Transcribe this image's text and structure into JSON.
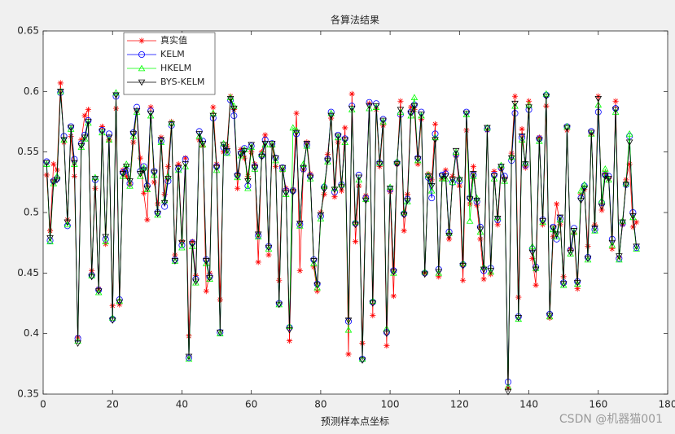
{
  "chart_data": {
    "type": "line",
    "title": "各算法结果",
    "x_label": "预测样本点坐标",
    "watermark": "CSDN @机器猫001",
    "x": [
      1,
      2,
      3,
      4,
      5,
      6,
      7,
      8,
      9,
      10,
      11,
      12,
      13,
      14,
      15,
      16,
      17,
      18,
      19,
      20,
      21,
      22,
      23,
      24,
      25,
      26,
      27,
      28,
      29,
      30,
      31,
      32,
      33,
      34,
      35,
      36,
      37,
      38,
      39,
      40,
      41,
      42,
      43,
      44,
      45,
      46,
      47,
      48,
      49,
      50,
      51,
      52,
      53,
      54,
      55,
      56,
      57,
      58,
      59,
      60,
      61,
      62,
      63,
      64,
      65,
      66,
      67,
      68,
      69,
      70,
      71,
      72,
      73,
      74,
      75,
      76,
      77,
      78,
      79,
      80,
      81,
      82,
      83,
      84,
      85,
      86,
      87,
      88,
      89,
      90,
      91,
      92,
      93,
      94,
      95,
      96,
      97,
      98,
      99,
      100,
      101,
      102,
      103,
      104,
      105,
      106,
      107,
      108,
      109,
      110,
      111,
      112,
      113,
      114,
      115,
      116,
      117,
      118,
      119,
      120,
      121,
      122,
      123,
      124,
      125,
      126,
      127,
      128,
      129,
      130,
      131,
      132,
      133,
      134,
      135,
      136,
      137,
      138,
      139,
      140,
      141,
      142,
      143,
      144,
      145,
      146,
      147,
      148,
      149,
      150,
      151,
      152,
      153,
      154,
      155,
      156,
      157,
      158,
      159,
      160,
      161,
      162,
      163,
      164,
      165,
      166,
      167,
      168,
      169,
      170,
      171
    ],
    "series": [
      {
        "name": "真实值",
        "color": "#ff0000",
        "marker": "*",
        "values": [
          0.531,
          0.485,
          0.54,
          0.535,
          0.607,
          0.558,
          0.494,
          0.563,
          0.53,
          0.397,
          0.56,
          0.58,
          0.585,
          0.452,
          0.52,
          0.437,
          0.571,
          0.474,
          0.56,
          0.423,
          0.586,
          0.424,
          0.535,
          0.53,
          0.523,
          0.558,
          0.584,
          0.545,
          0.516,
          0.494,
          0.587,
          0.525,
          0.507,
          0.562,
          0.515,
          0.538,
          0.575,
          0.465,
          0.54,
          0.476,
          0.545,
          0.398,
          0.476,
          0.448,
          0.56,
          0.555,
          0.435,
          0.45,
          0.587,
          0.54,
          0.428,
          0.55,
          0.555,
          0.596,
          0.585,
          0.52,
          0.552,
          0.545,
          0.53,
          0.55,
          0.54,
          0.459,
          0.55,
          0.564,
          0.465,
          0.555,
          0.538,
          0.444,
          0.535,
          0.52,
          0.394,
          0.519,
          0.582,
          0.452,
          0.535,
          0.558,
          0.532,
          0.455,
          0.435,
          0.5,
          0.515,
          0.548,
          0.578,
          0.513,
          0.558,
          0.518,
          0.57,
          0.383,
          0.598,
          0.476,
          0.522,
          0.392,
          0.514,
          0.59,
          0.415,
          0.585,
          0.538,
          0.572,
          0.39,
          0.517,
          0.431,
          0.54,
          0.592,
          0.485,
          0.515,
          0.587,
          0.585,
          0.54,
          0.577,
          0.45,
          0.532,
          0.527,
          0.573,
          0.447,
          0.528,
          0.535,
          0.478,
          0.53,
          0.547,
          0.522,
          0.444,
          0.568,
          0.507,
          0.538,
          0.506,
          0.478,
          0.445,
          0.568,
          0.449,
          0.534,
          0.49,
          0.536,
          0.528,
          0.355,
          0.549,
          0.596,
          0.43,
          0.569,
          0.537,
          0.592,
          0.462,
          0.44,
          0.562,
          0.49,
          0.588,
          0.413,
          0.48,
          0.507,
          0.49,
          0.447,
          0.568,
          0.47,
          0.483,
          0.437,
          0.515,
          0.519,
          0.472,
          0.565,
          0.49,
          0.596,
          0.502,
          0.533,
          0.528,
          0.47,
          0.592,
          0.463,
          0.49,
          0.527,
          0.54,
          0.488,
          0.492
        ]
      },
      {
        "name": "KELM",
        "color": "#0000ff",
        "marker": "o",
        "values": [
          0.542,
          0.477,
          0.526,
          0.528,
          0.599,
          0.563,
          0.489,
          0.571,
          0.544,
          0.396,
          0.557,
          0.564,
          0.576,
          0.448,
          0.527,
          0.436,
          0.568,
          0.478,
          0.565,
          0.412,
          0.596,
          0.428,
          0.533,
          0.535,
          0.524,
          0.566,
          0.587,
          0.534,
          0.538,
          0.522,
          0.584,
          0.534,
          0.5,
          0.559,
          0.505,
          0.526,
          0.572,
          0.461,
          0.536,
          0.473,
          0.544,
          0.38,
          0.475,
          0.445,
          0.567,
          0.559,
          0.461,
          0.447,
          0.578,
          0.538,
          0.401,
          0.554,
          0.55,
          0.593,
          0.58,
          0.531,
          0.549,
          0.553,
          0.522,
          0.555,
          0.538,
          0.481,
          0.547,
          0.56,
          0.472,
          0.557,
          0.545,
          0.425,
          0.537,
          0.518,
          0.405,
          0.518,
          0.565,
          0.49,
          0.536,
          0.556,
          0.53,
          0.461,
          0.441,
          0.497,
          0.521,
          0.544,
          0.583,
          0.517,
          0.564,
          0.523,
          0.561,
          0.41,
          0.588,
          0.491,
          0.531,
          0.379,
          0.512,
          0.591,
          0.426,
          0.59,
          0.541,
          0.577,
          0.401,
          0.519,
          0.452,
          0.541,
          0.581,
          0.499,
          0.511,
          0.583,
          0.589,
          0.545,
          0.583,
          0.45,
          0.529,
          0.512,
          0.565,
          0.453,
          0.531,
          0.532,
          0.484,
          0.525,
          0.548,
          0.526,
          0.457,
          0.583,
          0.512,
          0.531,
          0.509,
          0.488,
          0.452,
          0.569,
          0.454,
          0.531,
          0.494,
          0.537,
          0.53,
          0.36,
          0.543,
          0.582,
          0.414,
          0.562,
          0.539,
          0.585,
          0.47,
          0.455,
          0.561,
          0.494,
          0.597,
          0.416,
          0.488,
          0.478,
          0.495,
          0.442,
          0.571,
          0.469,
          0.487,
          0.443,
          0.512,
          0.522,
          0.463,
          0.567,
          0.486,
          0.583,
          0.508,
          0.531,
          0.53,
          0.478,
          0.586,
          0.462,
          0.491,
          0.523,
          0.563,
          0.5,
          0.471
        ]
      },
      {
        "name": "HKELM",
        "color": "#00ff00",
        "marker": "^",
        "values": [
          0.54,
          0.476,
          0.524,
          0.53,
          0.6,
          0.56,
          0.49,
          0.569,
          0.54,
          0.394,
          0.554,
          0.561,
          0.574,
          0.448,
          0.529,
          0.434,
          0.566,
          0.476,
          0.56,
          0.413,
          0.599,
          0.427,
          0.53,
          0.54,
          0.522,
          0.563,
          0.583,
          0.53,
          0.537,
          0.519,
          0.58,
          0.531,
          0.498,
          0.558,
          0.51,
          0.53,
          0.574,
          0.46,
          0.535,
          0.471,
          0.538,
          0.379,
          0.472,
          0.442,
          0.563,
          0.556,
          0.458,
          0.445,
          0.582,
          0.535,
          0.4,
          0.557,
          0.549,
          0.595,
          0.588,
          0.529,
          0.547,
          0.552,
          0.52,
          0.554,
          0.536,
          0.48,
          0.548,
          0.556,
          0.47,
          0.556,
          0.543,
          0.424,
          0.536,
          0.515,
          0.406,
          0.57,
          0.568,
          0.489,
          0.54,
          0.555,
          0.528,
          0.458,
          0.438,
          0.495,
          0.522,
          0.542,
          0.582,
          0.52,
          0.562,
          0.523,
          0.558,
          0.403,
          0.585,
          0.492,
          0.527,
          0.379,
          0.511,
          0.586,
          0.427,
          0.587,
          0.541,
          0.575,
          0.404,
          0.521,
          0.45,
          0.542,
          0.583,
          0.5,
          0.509,
          0.58,
          0.595,
          0.543,
          0.58,
          0.451,
          0.531,
          0.518,
          0.562,
          0.45,
          0.528,
          0.528,
          0.483,
          0.525,
          0.55,
          0.528,
          0.458,
          0.581,
          0.493,
          0.53,
          0.512,
          0.484,
          0.455,
          0.57,
          0.451,
          0.528,
          0.496,
          0.539,
          0.526,
          0.356,
          0.546,
          0.588,
          0.412,
          0.56,
          0.541,
          0.589,
          0.472,
          0.454,
          0.559,
          0.492,
          0.598,
          0.414,
          0.486,
          0.48,
          0.494,
          0.44,
          0.571,
          0.466,
          0.484,
          0.441,
          0.518,
          0.523,
          0.461,
          0.565,
          0.485,
          0.589,
          0.51,
          0.536,
          0.527,
          0.473,
          0.583,
          0.461,
          0.493,
          0.524,
          0.565,
          0.496,
          0.47
        ]
      },
      {
        "name": "BYS-KELM",
        "color": "#000000",
        "marker": "v",
        "values": [
          0.541,
          0.479,
          0.525,
          0.527,
          0.6,
          0.56,
          0.492,
          0.57,
          0.541,
          0.392,
          0.555,
          0.562,
          0.575,
          0.447,
          0.528,
          0.435,
          0.567,
          0.48,
          0.562,
          0.411,
          0.597,
          0.426,
          0.532,
          0.538,
          0.526,
          0.565,
          0.584,
          0.532,
          0.535,
          0.52,
          0.582,
          0.533,
          0.499,
          0.56,
          0.508,
          0.528,
          0.573,
          0.46,
          0.537,
          0.475,
          0.54,
          0.381,
          0.474,
          0.443,
          0.565,
          0.557,
          0.46,
          0.446,
          0.58,
          0.537,
          0.401,
          0.556,
          0.551,
          0.594,
          0.586,
          0.53,
          0.548,
          0.551,
          0.526,
          0.556,
          0.537,
          0.482,
          0.546,
          0.557,
          0.471,
          0.557,
          0.545,
          0.424,
          0.537,
          0.516,
          0.403,
          0.517,
          0.566,
          0.491,
          0.537,
          0.557,
          0.529,
          0.46,
          0.44,
          0.498,
          0.519,
          0.543,
          0.58,
          0.519,
          0.563,
          0.521,
          0.56,
          0.411,
          0.586,
          0.49,
          0.529,
          0.378,
          0.51,
          0.588,
          0.425,
          0.588,
          0.54,
          0.576,
          0.4,
          0.52,
          0.451,
          0.54,
          0.585,
          0.498,
          0.51,
          0.582,
          0.588,
          0.544,
          0.581,
          0.449,
          0.53,
          0.522,
          0.56,
          0.451,
          0.53,
          0.53,
          0.481,
          0.527,
          0.551,
          0.527,
          0.456,
          0.582,
          0.511,
          0.532,
          0.51,
          0.486,
          0.453,
          0.57,
          0.452,
          0.53,
          0.495,
          0.538,
          0.527,
          0.352,
          0.545,
          0.59,
          0.413,
          0.563,
          0.54,
          0.587,
          0.467,
          0.453,
          0.56,
          0.493,
          0.596,
          0.415,
          0.487,
          0.482,
          0.496,
          0.441,
          0.57,
          0.467,
          0.485,
          0.442,
          0.51,
          0.52,
          0.462,
          0.566,
          0.487,
          0.594,
          0.505,
          0.53,
          0.528,
          0.475,
          0.585,
          0.464,
          0.492,
          0.523,
          0.558,
          0.497,
          0.472
        ]
      }
    ],
    "xlim": [
      0,
      180
    ],
    "xticks": [
      0,
      20,
      40,
      60,
      80,
      100,
      120,
      140,
      160,
      180
    ],
    "ylim": [
      0.35,
      0.65
    ],
    "yticks": [
      0.35,
      0.4,
      0.45,
      0.5,
      0.55,
      0.6,
      0.65
    ],
    "grid": false,
    "legend": "upper left"
  }
}
